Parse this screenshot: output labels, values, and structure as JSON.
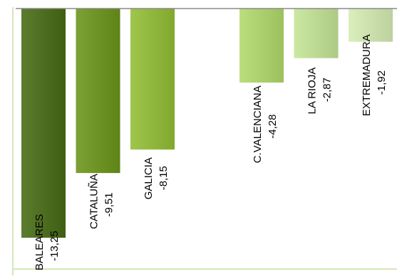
{
  "chart_data": {
    "type": "bar",
    "orientation": "vertical",
    "categories": [
      "BALEARES",
      "CATALUÑA",
      "GALICIA",
      "",
      "C.VALENCIANA",
      "LA RIOJA",
      "EXTREMADURA"
    ],
    "values": [
      -13.25,
      -9.51,
      -8.15,
      null,
      -4.28,
      -2.87,
      -1.92
    ],
    "value_labels": [
      "-13,25",
      "-9,51",
      "-8,15",
      "",
      "-4,28",
      "-2,87",
      "-1,92"
    ],
    "ylim": [
      -13.25,
      0
    ],
    "axis": "top",
    "grid": false,
    "legend": "none",
    "title": "",
    "xlabel": "",
    "ylabel": ""
  },
  "colors": {
    "bars": [
      "#4a6a1d",
      "#6a8f23",
      "#8db43a",
      "",
      "#a9cc6b",
      "#b9d690",
      "#c8ddaa"
    ],
    "axis": "#8a8a8a",
    "border": "#d6e6b8"
  }
}
